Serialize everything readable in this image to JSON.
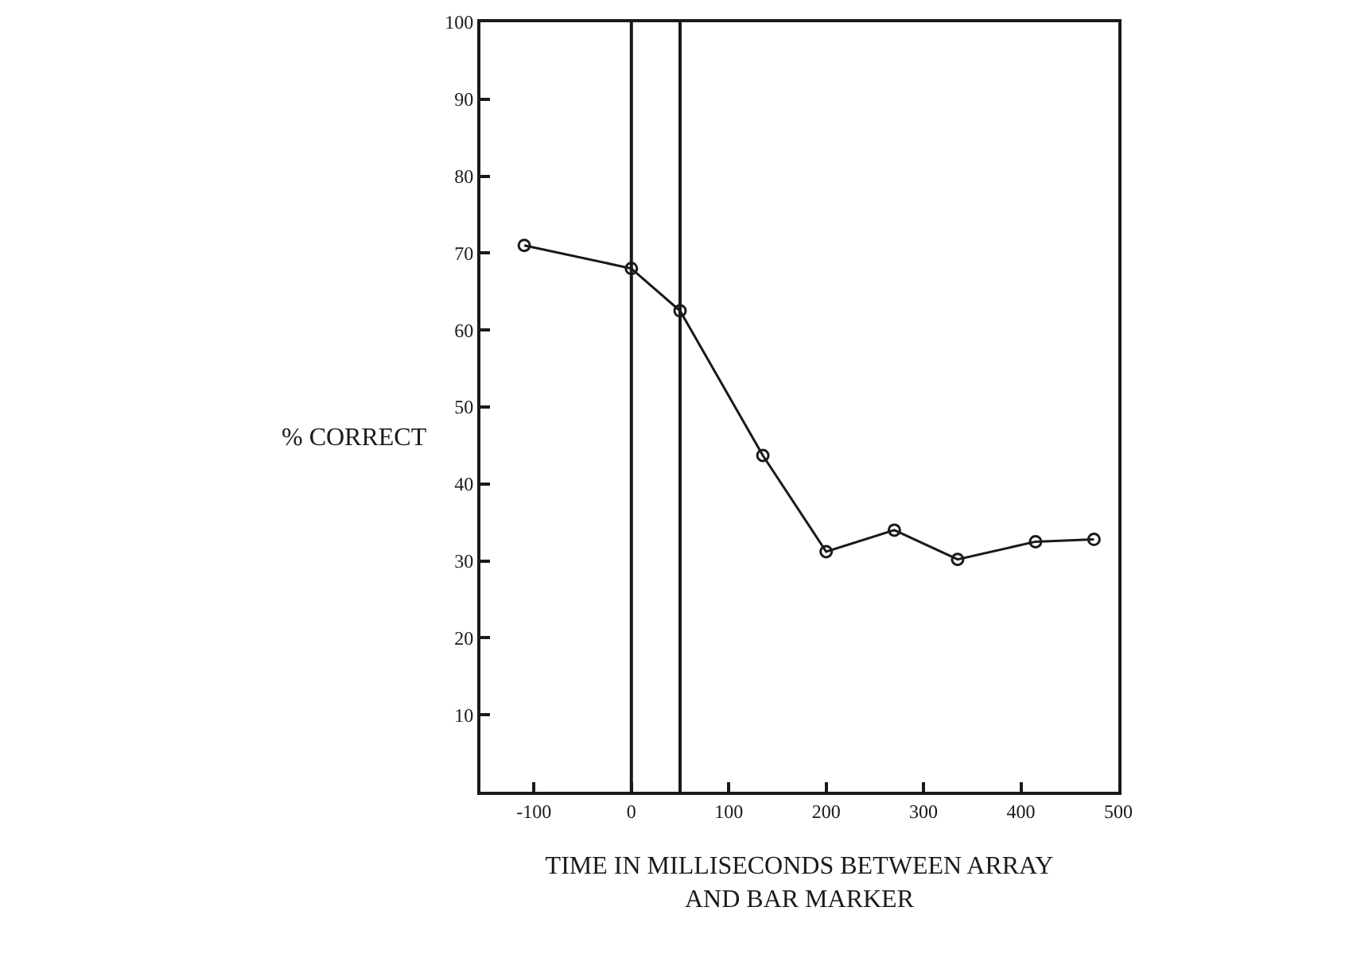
{
  "chart_data": {
    "type": "line",
    "xlabel": "TIME IN MILLISECONDS BETWEEN ARRAY\nAND BAR MARKER",
    "ylabel": "% CORRECT",
    "x": [
      -110,
      0,
      50,
      135,
      200,
      270,
      335,
      415,
      475
    ],
    "values": [
      71,
      68,
      62.5,
      43.7,
      31.2,
      34,
      30.2,
      32.5,
      32.8
    ],
    "color": "#1a1a1a",
    "marker": "circle",
    "line_style": "solid",
    "xlim": [
      -155,
      500
    ],
    "xticks": [
      -100,
      0,
      100,
      200,
      300,
      400,
      500
    ],
    "ylim": [
      0,
      100
    ],
    "yticks": [
      10,
      20,
      30,
      40,
      50,
      60,
      70,
      80,
      90,
      100
    ],
    "ref_lines": [
      {
        "axis": "x",
        "value": 0,
        "color": "#1a1a1a"
      },
      {
        "axis": "x",
        "value": 50,
        "color": "#1a1a1a"
      }
    ]
  }
}
